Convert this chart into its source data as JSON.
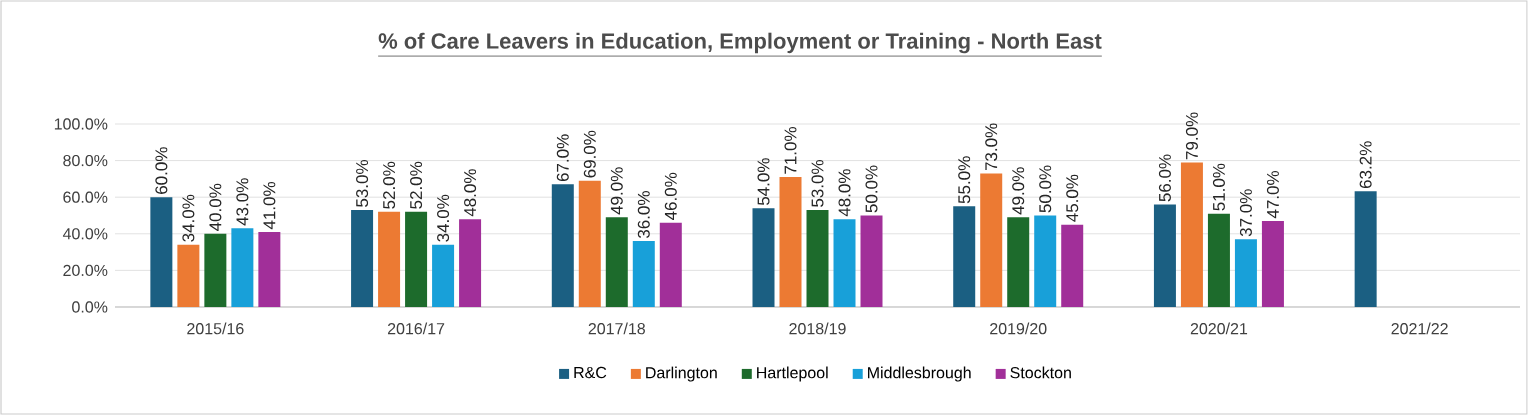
{
  "chart_data": {
    "type": "bar",
    "title": "% of Care Leavers in Education, Employment or Training - North East",
    "categories": [
      "2015/16",
      "2016/17",
      "2017/18",
      "2018/19",
      "2019/20",
      "2020/21",
      "2021/22"
    ],
    "series": [
      {
        "name": "R&C",
        "color": "#1b5f82",
        "values": [
          60.0,
          53.0,
          67.0,
          54.0,
          55.0,
          56.0,
          63.2
        ],
        "value_labels": [
          "60.0%",
          "53.0%",
          "67.0%",
          "54.0%",
          "55.0%",
          "56.0%",
          "63.2%"
        ]
      },
      {
        "name": "Darlington",
        "color": "#ec7a33",
        "values": [
          34.0,
          52.0,
          69.0,
          71.0,
          73.0,
          79.0,
          null
        ],
        "value_labels": [
          "34.0%",
          "52.0%",
          "69.0%",
          "71.0%",
          "73.0%",
          "79.0%",
          null
        ]
      },
      {
        "name": "Hartlepool",
        "color": "#1d6b2c",
        "values": [
          40.0,
          52.0,
          49.0,
          53.0,
          49.0,
          51.0,
          null
        ],
        "value_labels": [
          "40.0%",
          "52.0%",
          "49.0%",
          "53.0%",
          "49.0%",
          "51.0%",
          null
        ]
      },
      {
        "name": "Middlesbrough",
        "color": "#18a0d9",
        "values": [
          43.0,
          34.0,
          36.0,
          48.0,
          50.0,
          37.0,
          null
        ],
        "value_labels": [
          "43.0%",
          "34.0%",
          "36.0%",
          "48.0%",
          "50.0%",
          "37.0%",
          null
        ]
      },
      {
        "name": "Stockton",
        "color": "#a12f99",
        "values": [
          41.0,
          48.0,
          46.0,
          50.0,
          45.0,
          47.0,
          null
        ],
        "value_labels": [
          "41.0%",
          "48.0%",
          "46.0%",
          "50.0%",
          "45.0%",
          "47.0%",
          null
        ]
      }
    ],
    "ylim": [
      0,
      100
    ],
    "yticks": [
      {
        "value": 0,
        "label": "0.0%"
      },
      {
        "value": 20,
        "label": "20.0%"
      },
      {
        "value": 40,
        "label": "40.0%"
      },
      {
        "value": 60,
        "label": "60.0%"
      },
      {
        "value": 80,
        "label": "80.0%"
      },
      {
        "value": 100,
        "label": "100.0%"
      }
    ],
    "grid": "y",
    "legend": "bottom"
  }
}
